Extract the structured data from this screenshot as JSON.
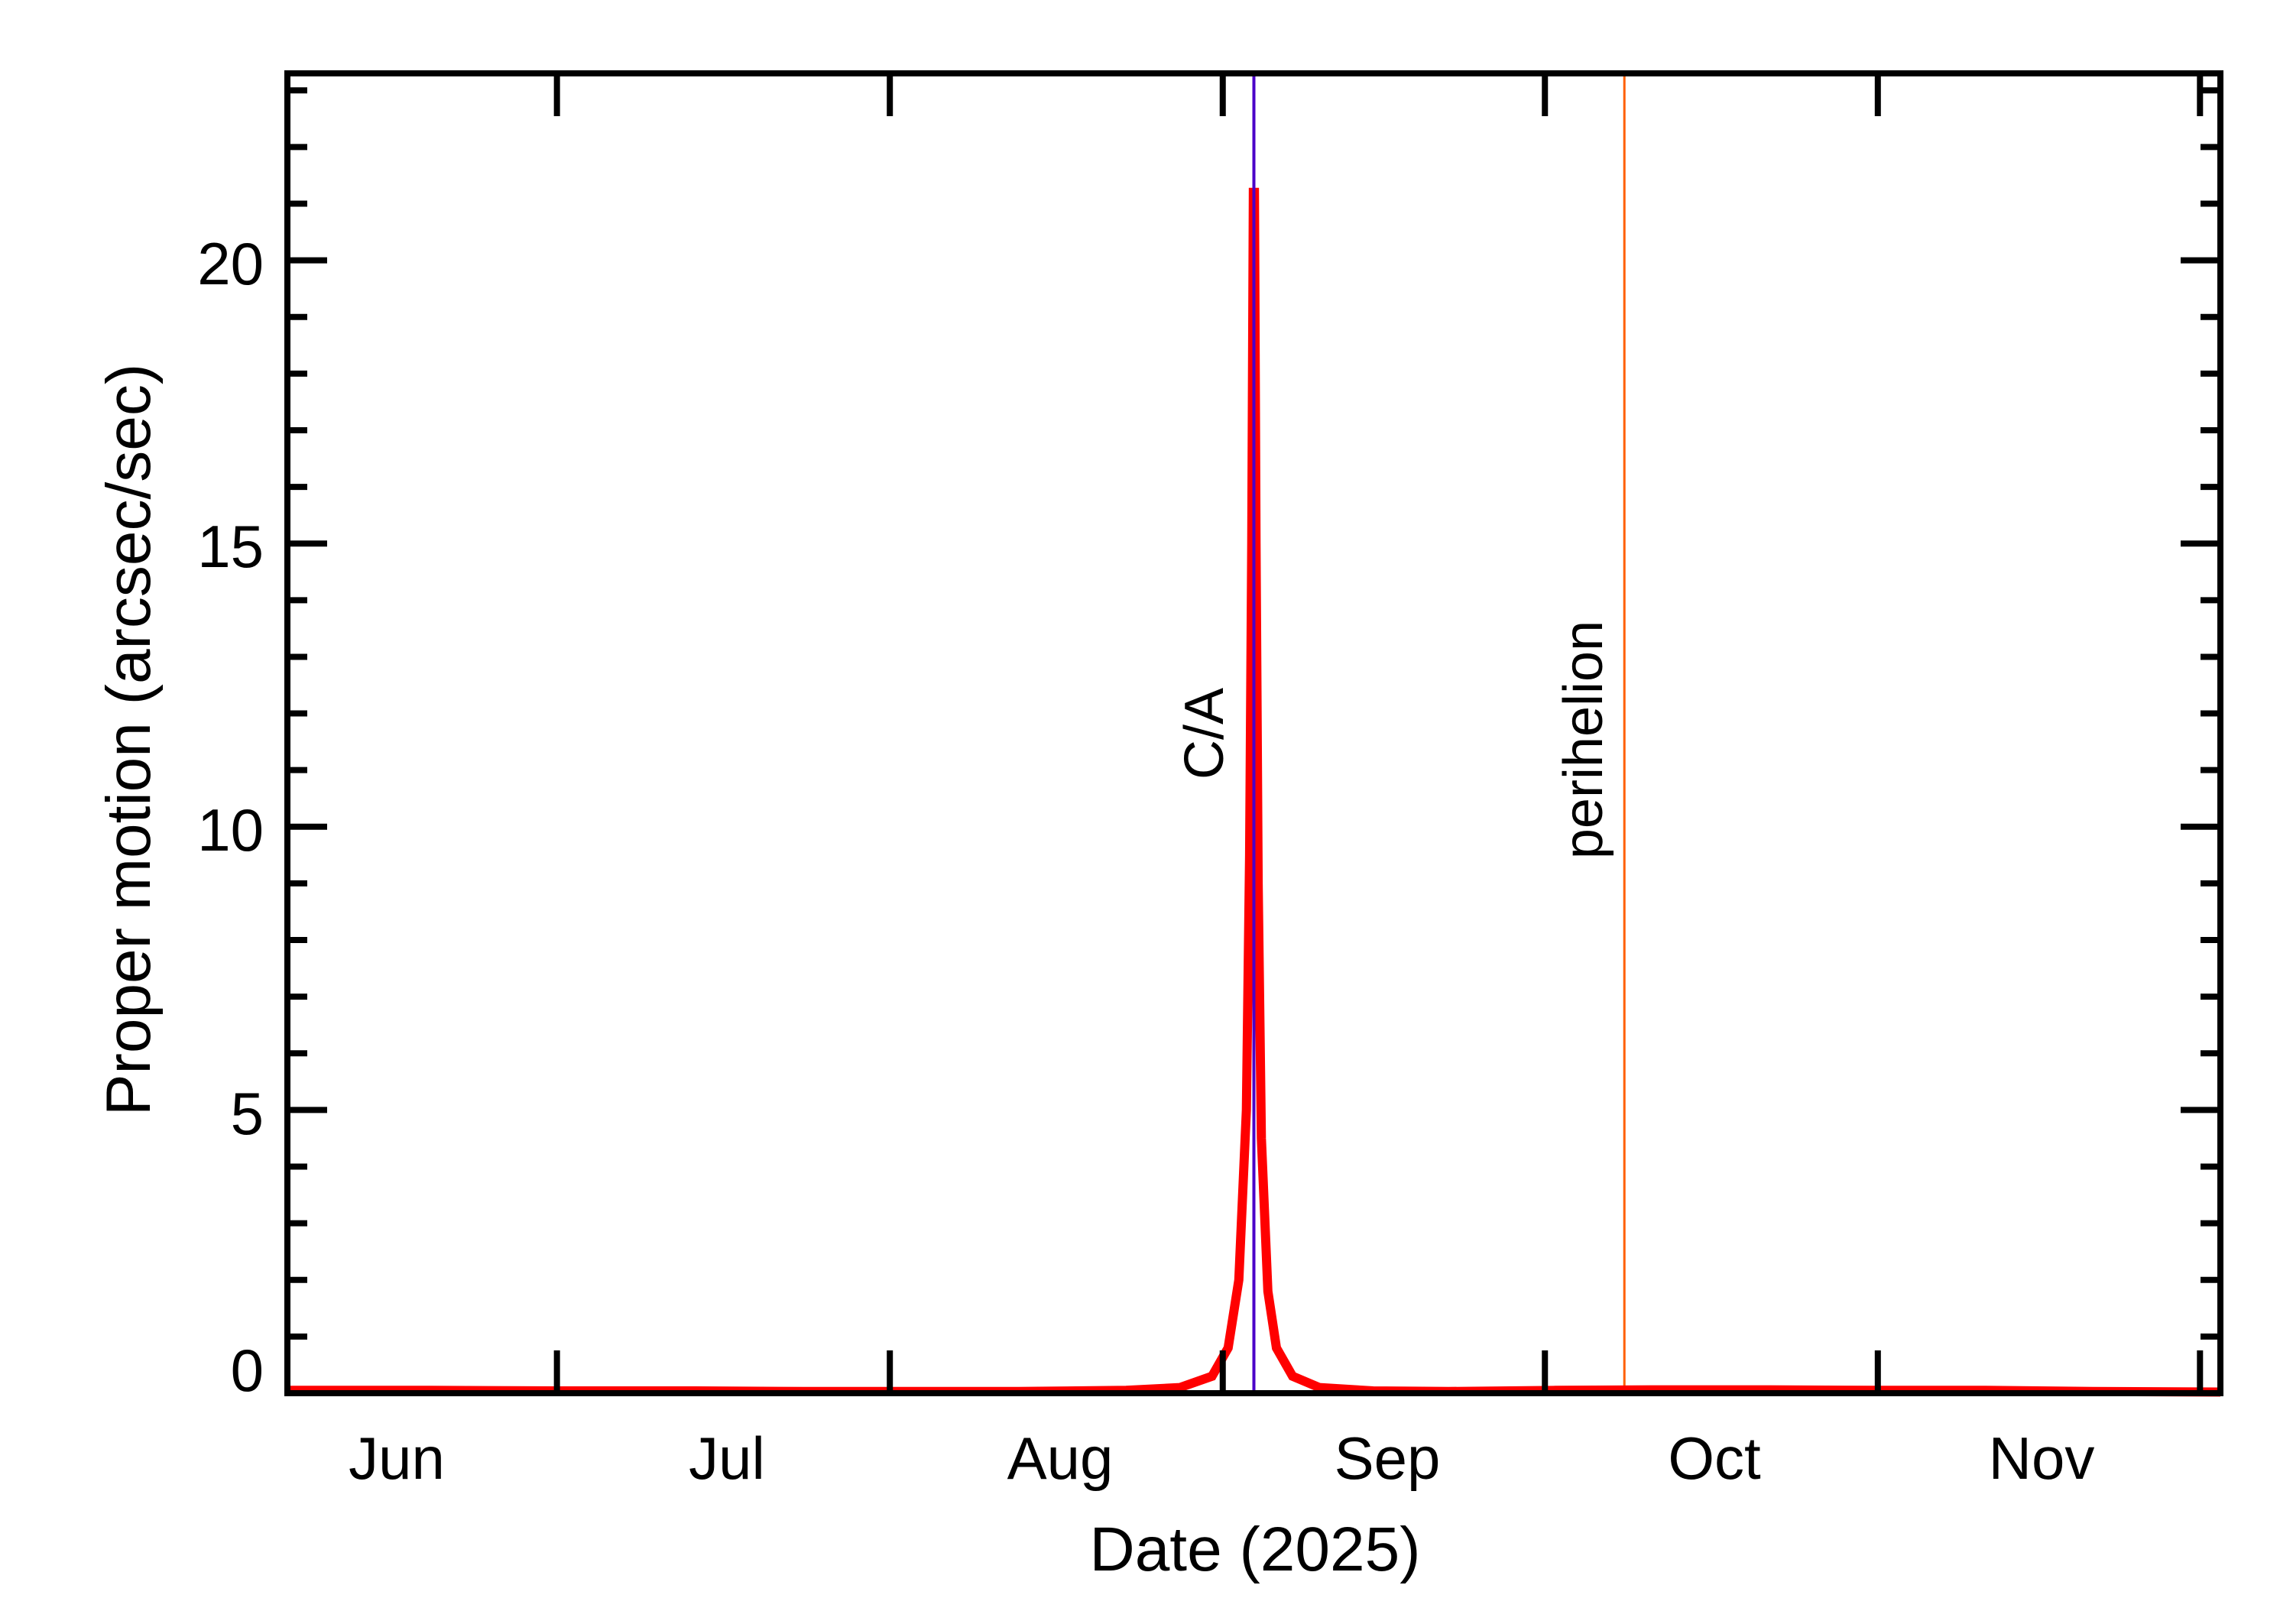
{
  "chart_data": {
    "type": "line",
    "title": "",
    "xlabel": "Date (2025)",
    "ylabel": "Proper motion (arcsec/sec)",
    "x_unit": "day of year 2025",
    "xlim": [
      156.9,
      336.9
    ],
    "ylim": [
      0,
      23.3
    ],
    "grid": false,
    "legend": null,
    "x_major_ticks": [
      {
        "day": 182,
        "date": "Jul 1"
      },
      {
        "day": 213,
        "date": "Aug 1"
      },
      {
        "day": 244,
        "date": "Sep 1"
      },
      {
        "day": 274,
        "date": "Oct 1"
      },
      {
        "day": 305,
        "date": "Nov 1"
      },
      {
        "day": 335,
        "date": "Dec 1"
      }
    ],
    "x_tick_labels": [
      {
        "label": "Jun",
        "center_day": 167
      },
      {
        "label": "Jul",
        "center_day": 197.5
      },
      {
        "label": "Aug",
        "center_day": 228.5
      },
      {
        "label": "Sep",
        "center_day": 259
      },
      {
        "label": "Oct",
        "center_day": 289.5
      },
      {
        "label": "Nov",
        "center_day": 320
      }
    ],
    "y_major_ticks": [
      0,
      5,
      10,
      15,
      20
    ],
    "y_tick_labels": [
      "0",
      "5",
      "10",
      "15",
      "20"
    ],
    "y_minor_step": 1,
    "series": [
      {
        "name": "Proper motion",
        "color": "#ff0000",
        "peak_day": 246.9,
        "peak_value": 21.2,
        "baseline": 0.05,
        "points": [
          [
            156.9,
            0.05
          ],
          [
            170,
            0.05
          ],
          [
            182,
            0.04
          ],
          [
            195,
            0.04
          ],
          [
            205,
            0.03
          ],
          [
            213,
            0.03
          ],
          [
            225,
            0.03
          ],
          [
            235,
            0.05
          ],
          [
            240,
            0.1
          ],
          [
            243,
            0.3
          ],
          [
            244.5,
            0.8
          ],
          [
            245.5,
            2.0
          ],
          [
            246.2,
            5.0
          ],
          [
            246.5,
            9.5
          ],
          [
            246.7,
            15.0
          ],
          [
            246.85,
            21.2
          ],
          [
            246.95,
            21.2
          ],
          [
            247.1,
            15.0
          ],
          [
            247.3,
            9.0
          ],
          [
            247.6,
            4.5
          ],
          [
            248.2,
            1.8
          ],
          [
            249,
            0.8
          ],
          [
            250.5,
            0.3
          ],
          [
            253,
            0.1
          ],
          [
            258,
            0.04
          ],
          [
            265,
            0.03
          ],
          [
            275,
            0.05
          ],
          [
            285,
            0.06
          ],
          [
            295,
            0.06
          ],
          [
            305,
            0.05
          ],
          [
            315,
            0.05
          ],
          [
            325,
            0.03
          ],
          [
            336.9,
            0.02
          ]
        ]
      }
    ],
    "annotations": [
      {
        "label": "C/A",
        "day": 246.9,
        "color": "#4b00c8",
        "type": "vertical-line"
      },
      {
        "label": "perihelion",
        "day": 281.4,
        "color": "#ff5f00",
        "type": "vertical-line"
      }
    ]
  },
  "axes": {
    "xlabel": "Date (2025)",
    "ylabel": "Proper motion (arcsec/sec)",
    "x_months": [
      "Jun",
      "Jul",
      "Aug",
      "Sep",
      "Oct",
      "Nov"
    ],
    "y_values": [
      "0",
      "5",
      "10",
      "15",
      "20"
    ]
  },
  "markers": {
    "ca_label": "C/A",
    "perihelion_label": "perihelion"
  },
  "colors": {
    "curve": "#ff0000",
    "ca": "#4b00c8",
    "perihelion": "#ff5f00",
    "axis": "#000000"
  }
}
